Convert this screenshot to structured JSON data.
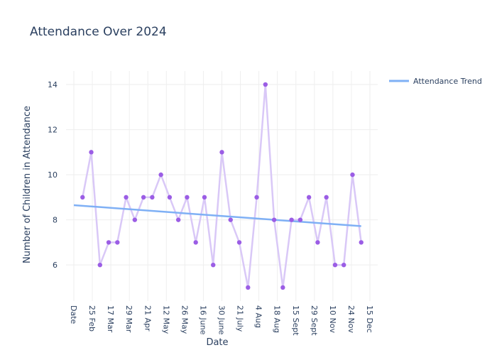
{
  "chart_data": {
    "type": "line",
    "title": "Attendance Over 2024",
    "xlabel": "Date",
    "ylabel": "Number of Children in Attendance",
    "y_ticks": [
      6,
      8,
      10,
      12,
      14
    ],
    "ylim": [
      4.4,
      14.6
    ],
    "x_tick_labels": [
      "Date",
      "25 Feb",
      "17 Mar",
      "29 Mar",
      "21 Apr",
      "12 May",
      "26 May",
      "16 June",
      "30 June",
      "21 July",
      "4 Aug",
      "18 Aug",
      "15 Sept",
      "29 Sept",
      "10 Nov",
      "24 Nov",
      "15 Dec"
    ],
    "x_range": [
      0,
      34
    ],
    "series": [
      {
        "kind": "attendance",
        "x": [
          1,
          2,
          3,
          4,
          5,
          6,
          7,
          8,
          9,
          10,
          11,
          12,
          13,
          14,
          15,
          16,
          17,
          18,
          19,
          20,
          21,
          22,
          23,
          24,
          25,
          26,
          27,
          28,
          29,
          30,
          31,
          32,
          33
        ],
        "values": [
          9,
          11,
          6,
          7,
          7,
          9,
          8,
          9,
          9,
          10,
          9,
          8,
          9,
          7,
          9,
          6,
          11,
          8,
          7,
          5,
          9,
          14,
          8,
          5,
          8,
          8,
          9,
          7,
          9,
          6,
          6,
          10,
          7
        ],
        "line_color": "#d9c8f7",
        "marker_color": "#9b5de5"
      },
      {
        "name": "Attendance Trend",
        "x": [
          0,
          33
        ],
        "values": [
          8.65,
          7.72
        ],
        "color": "#7fb0f5"
      }
    ],
    "legend_position": "top-right",
    "grid": true
  }
}
